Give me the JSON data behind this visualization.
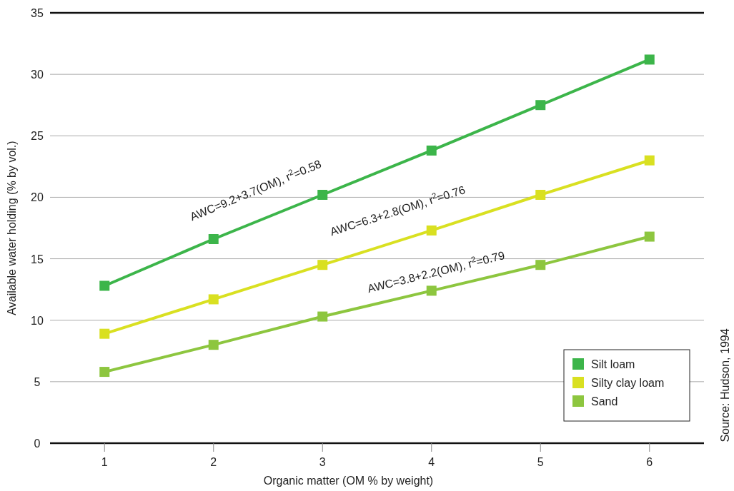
{
  "chart_data": {
    "type": "line",
    "xlabel": "Organic matter (OM % by weight)",
    "ylabel": "Available water holding (% by vol.)",
    "x": [
      1,
      2,
      3,
      4,
      5,
      6
    ],
    "series": [
      {
        "name": "Silt loam",
        "color": "#3cb54a",
        "values": [
          12.8,
          16.6,
          20.2,
          23.8,
          27.5,
          31.2
        ]
      },
      {
        "name": "Silty clay loam",
        "color": "#d9e021",
        "values": [
          8.9,
          11.7,
          14.5,
          17.3,
          20.2,
          23.0
        ]
      },
      {
        "name": "Sand",
        "color": "#8dc63f",
        "values": [
          5.8,
          8.0,
          10.3,
          12.4,
          14.5,
          16.8
        ]
      }
    ],
    "xlim": [
      0.5,
      6.5
    ],
    "xticks": [
      1,
      2,
      3,
      4,
      5,
      6
    ],
    "ylim": [
      0,
      35
    ],
    "yticks": [
      0,
      5,
      10,
      15,
      20,
      25,
      30,
      35
    ],
    "grid": "y",
    "legend": "bottom right",
    "marker": "square",
    "line_style": "solid",
    "annotations": [
      "AWC=9.2+3.7(OM), r$^{2}$=0.58",
      "AWC=6.3+2.8(OM), r$^{2}$=0.76",
      "AWC=3.8+2.2(OM), r$^{2}$=0.79",
      "Source: Hudson, 1994"
    ]
  }
}
